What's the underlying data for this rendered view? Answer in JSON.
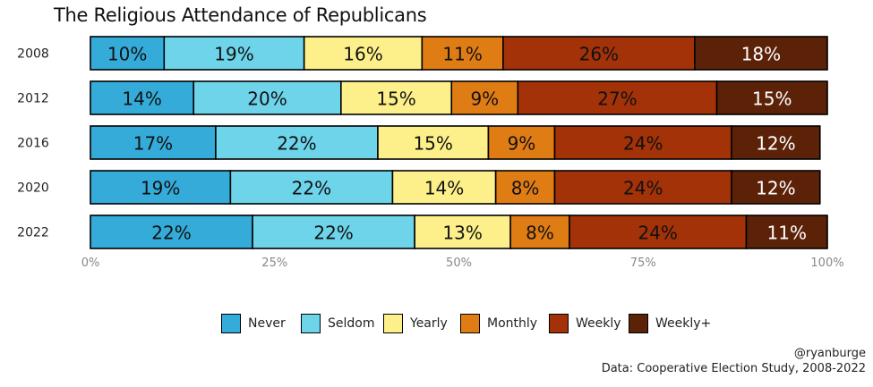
{
  "chart_data": {
    "type": "bar",
    "orientation": "horizontal",
    "stacked": true,
    "title": "The Religious Attendance of Republicans",
    "categories": [
      "2008",
      "2012",
      "2016",
      "2020",
      "2022"
    ],
    "series": [
      {
        "name": "Never",
        "color": "#34ABD9",
        "values": [
          10,
          14,
          17,
          19,
          22
        ],
        "label_color": "#111111"
      },
      {
        "name": "Seldom",
        "color": "#6DD4EA",
        "values": [
          19,
          20,
          22,
          22,
          22
        ],
        "label_color": "#111111"
      },
      {
        "name": "Yearly",
        "color": "#FDF08A",
        "values": [
          16,
          15,
          15,
          14,
          13
        ],
        "label_color": "#111111"
      },
      {
        "name": "Monthly",
        "color": "#E07C14",
        "values": [
          11,
          9,
          9,
          8,
          8
        ],
        "label_color": "#111111"
      },
      {
        "name": "Weekly",
        "color": "#A33208",
        "values": [
          26,
          27,
          24,
          24,
          24
        ],
        "label_color": "#111111"
      },
      {
        "name": "Weekly+",
        "color": "#5C2208",
        "values": [
          18,
          15,
          12,
          12,
          11
        ],
        "label_color": "#ffffff"
      }
    ],
    "xlim": [
      0,
      100
    ],
    "xticks": [
      0,
      25,
      50,
      75,
      100
    ],
    "xtick_labels": [
      "0%",
      "25%",
      "50%",
      "75%",
      "100%"
    ],
    "grid": false,
    "legend_position": "bottom"
  },
  "credits": {
    "line1": "@ryanburge",
    "line2": "Data: Cooperative Election Study, 2008-2022"
  }
}
